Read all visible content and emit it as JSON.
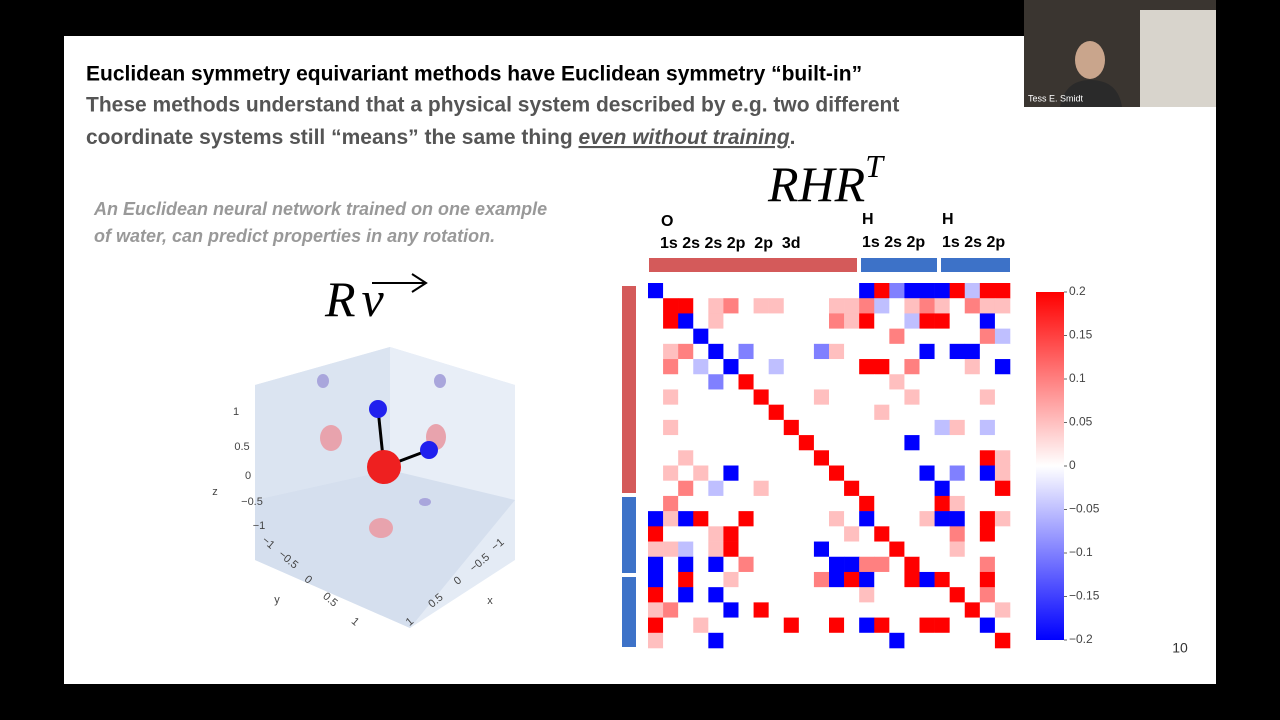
{
  "header": {
    "title": "Euclidean symmetry equivariant methods have Euclidean symmetry “built-in”",
    "subtitle_line1": "These methods understand that a physical system described by e.g. two different",
    "subtitle_line2": "coordinate systems still “means” the same thing ",
    "subtitle_emphasis": "even without training",
    "subtitle_end": "."
  },
  "caption": [
    "An Euclidean neural network trained on one example",
    "of water, can predict properties in any rotation."
  ],
  "left_formula": {
    "base": "R",
    "vector": "v"
  },
  "right_formula": {
    "base": "RHR",
    "superscript": "T"
  },
  "plot3d": {
    "z_label": "z",
    "y_label": "y",
    "x_label": "x",
    "z_ticks": [
      "1",
      "0.5",
      "0",
      "−0.5",
      "−1"
    ],
    "y_ticks": [
      "−1",
      "−0.5",
      "0",
      "0.5",
      "1"
    ],
    "x_ticks": [
      "1",
      "0.5",
      "0",
      "−0.5",
      "−1"
    ]
  },
  "chart_data": {
    "type": "heatmap",
    "groups": [
      {
        "atom": "O",
        "orbitals": "1s 2s 2s 2p  2p  3d"
      },
      {
        "atom": "H",
        "orbitals": "1s 2s 2p"
      },
      {
        "atom": "H",
        "orbitals": "1s 2s 2p"
      }
    ],
    "zlim": [
      -0.2,
      0.2
    ],
    "colorscale": {
      "low": "#0000ff",
      "mid": "#ffffff",
      "high": "#ff0000"
    },
    "colorbar_ticks": [
      0.2,
      0.15,
      0.1,
      0.05,
      0,
      {
        "value": -0.05,
        "label": "−0.05"
      },
      {
        "value": -0.1,
        "label": "−0.1"
      },
      {
        "value": -0.15,
        "label": "−0.15"
      },
      {
        "value": -0.2,
        "label": "−0.2"
      }
    ],
    "values": [
      [
        -0.2,
        0,
        0,
        0,
        0,
        0,
        0,
        0,
        0,
        0,
        0,
        0,
        0,
        0,
        -0.2,
        0.2,
        -0.1,
        -0.2,
        -0.2,
        -0.2,
        0.2,
        -0.05,
        0.2,
        0.2
      ],
      [
        0,
        0.2,
        0.2,
        0,
        0.05,
        0.1,
        0,
        0.05,
        0.05,
        0,
        0,
        0,
        0.05,
        0.05,
        0.1,
        -0.05,
        0,
        0.05,
        0.1,
        0.05,
        0,
        0.1,
        0.05,
        0.05
      ],
      [
        0,
        0.2,
        -0.2,
        0,
        0.05,
        0,
        0,
        0,
        0,
        0,
        0,
        0,
        0.1,
        0.05,
        0.2,
        0,
        0,
        -0.05,
        0.2,
        0.2,
        0,
        0,
        -0.2,
        0
      ],
      [
        0,
        0,
        0,
        -0.2,
        0,
        0,
        0,
        0,
        0,
        0,
        0,
        0,
        0,
        0,
        0,
        0,
        0.1,
        0,
        0,
        0,
        0,
        0,
        0.1,
        -0.05
      ],
      [
        0,
        0.05,
        0.1,
        0,
        -0.2,
        0,
        -0.1,
        0,
        0,
        0,
        0,
        -0.1,
        0.05,
        0,
        0,
        0,
        0,
        0,
        -0.2,
        0,
        -0.2,
        -0.2,
        0,
        0
      ],
      [
        0,
        0.1,
        0,
        -0.05,
        0,
        -0.2,
        0,
        0,
        -0.05,
        0,
        0,
        0,
        0,
        0,
        0.2,
        0.2,
        0,
        0.1,
        0,
        0,
        0,
        0.05,
        0,
        -0.2
      ],
      [
        0,
        0,
        0,
        0,
        -0.1,
        0,
        0.2,
        0,
        0,
        0,
        0,
        0,
        0,
        0,
        0,
        0,
        0.05,
        0,
        0,
        0,
        0,
        0,
        0,
        0
      ],
      [
        0,
        0.05,
        0,
        0,
        0,
        0,
        0,
        0.2,
        0,
        0,
        0,
        0.05,
        0,
        0,
        0,
        0,
        0,
        0.05,
        0,
        0,
        0,
        0,
        0.05,
        0
      ],
      [
        0,
        0,
        0,
        0,
        0,
        0,
        0,
        0,
        0.2,
        0,
        0,
        0,
        0,
        0,
        0,
        0.05,
        0,
        0,
        0,
        0,
        0,
        0,
        0,
        0
      ],
      [
        0,
        0.05,
        0,
        0,
        0,
        0,
        0,
        0,
        0,
        0.2,
        0,
        0,
        0,
        0,
        0,
        0,
        0,
        0,
        0,
        -0.05,
        0.05,
        0,
        -0.05,
        0
      ],
      [
        0,
        0,
        0,
        0,
        0,
        0,
        0,
        0,
        0,
        0,
        0.2,
        0,
        0,
        0,
        0,
        0,
        0,
        -0.2,
        0,
        0,
        0,
        0,
        0,
        0
      ],
      [
        0,
        0,
        0.05,
        0,
        0,
        0,
        0,
        0,
        0,
        0,
        0,
        0.2,
        0,
        0,
        0,
        0,
        0,
        0,
        0,
        0,
        0,
        0,
        0.2,
        0.05
      ],
      [
        0,
        0.05,
        0,
        0.05,
        0,
        -0.2,
        0,
        0,
        0,
        0,
        0,
        0,
        0.2,
        0,
        0,
        0,
        0,
        0,
        -0.2,
        0,
        -0.1,
        0,
        -0.2,
        0.05
      ],
      [
        0,
        0,
        0.1,
        0,
        -0.05,
        0,
        0,
        0.05,
        0,
        0,
        0,
        0,
        0,
        0.2,
        0,
        0,
        0,
        0,
        0,
        -0.2,
        0,
        0,
        0,
        0.2
      ],
      [
        0,
        0.1,
        0,
        0,
        0,
        0,
        0,
        0,
        0,
        0,
        0,
        0,
        0,
        0,
        0.2,
        0,
        0,
        0,
        0,
        0.2,
        0.05,
        0,
        0,
        0
      ],
      [
        -0.2,
        0.05,
        -0.2,
        0.2,
        0,
        0,
        0.2,
        0,
        0,
        0,
        0,
        0,
        0.05,
        0,
        -0.2,
        0,
        0,
        0,
        0.05,
        -0.2,
        -0.2,
        0,
        0.2,
        0.05
      ],
      [
        0.2,
        0,
        0,
        0,
        0.05,
        0.2,
        0,
        0,
        0,
        0,
        0,
        0,
        0,
        0.05,
        0,
        0.2,
        0,
        0,
        0,
        0,
        0.1,
        0,
        0.2,
        0
      ],
      [
        0.05,
        0.05,
        -0.05,
        0,
        0.05,
        0.2,
        0,
        0,
        0,
        0,
        0,
        -0.2,
        0,
        0,
        0,
        0,
        0.2,
        0,
        0,
        0,
        0.05,
        0,
        0,
        0
      ],
      [
        -0.2,
        0,
        -0.2,
        0,
        -0.2,
        0,
        0.1,
        0,
        0,
        0,
        0,
        0,
        -0.2,
        -0.2,
        0.1,
        0.1,
        0,
        0.2,
        0,
        0,
        0,
        0,
        0.1,
        0
      ],
      [
        -0.2,
        0,
        0.2,
        0,
        0,
        0.05,
        0,
        0,
        0,
        0,
        0,
        0.1,
        -0.2,
        0.2,
        -0.2,
        0,
        0,
        0.2,
        -0.2,
        0.2,
        0,
        0,
        0.2,
        0
      ],
      [
        0.2,
        0,
        -0.2,
        0,
        -0.2,
        0,
        0,
        0,
        0,
        0,
        0,
        0,
        0,
        0,
        0.05,
        0,
        0,
        0,
        0,
        0,
        0.2,
        0,
        0.1,
        0
      ],
      [
        0.05,
        0.1,
        0,
        0,
        0,
        -0.2,
        0,
        0.2,
        0,
        0,
        0,
        0,
        0,
        0,
        0,
        0,
        0,
        0,
        0,
        0,
        0,
        0.2,
        0,
        0.05
      ],
      [
        0.2,
        0,
        0,
        0.05,
        0,
        0,
        0,
        0,
        0,
        0.2,
        0,
        0,
        0.2,
        0,
        -0.2,
        0.2,
        0,
        0,
        0.2,
        0.2,
        0,
        0,
        -0.2,
        0
      ],
      [
        0.05,
        0,
        0,
        0,
        -0.2,
        0,
        0,
        0,
        0,
        0,
        0,
        0,
        0,
        0,
        0,
        0,
        -0.2,
        0,
        0,
        0,
        0,
        0,
        0,
        0.2
      ]
    ]
  },
  "webcam": {
    "name": "Tess E. Smidt"
  },
  "page_number": "10"
}
